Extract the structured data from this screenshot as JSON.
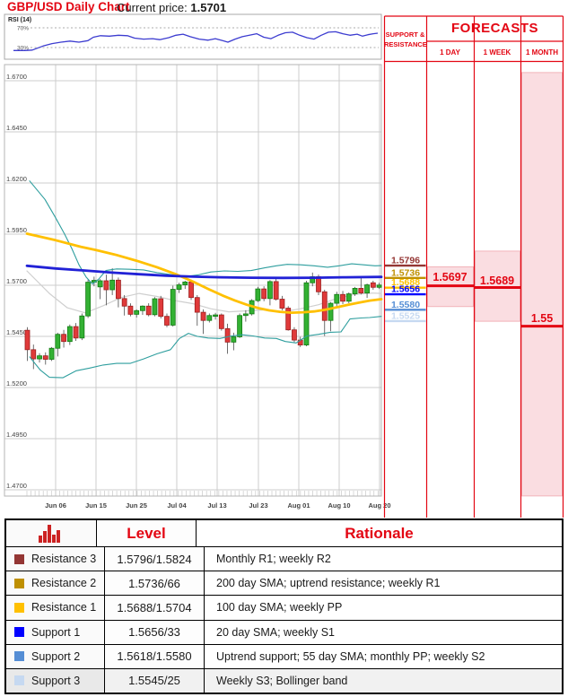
{
  "header": {
    "title": "GBP/USD Daily Chart",
    "price_label": "Current price:",
    "price_value": "1.5701"
  },
  "rsi": {
    "label": "RSI (14)",
    "upper_label": "70%",
    "lower_label": "30%",
    "points": [
      [
        15,
        24
      ],
      [
        28,
        24
      ],
      [
        36,
        25
      ],
      [
        48,
        33
      ],
      [
        58,
        38
      ],
      [
        68,
        41
      ],
      [
        78,
        43
      ],
      [
        88,
        41
      ],
      [
        98,
        44
      ],
      [
        104,
        51
      ],
      [
        112,
        54
      ],
      [
        122,
        53
      ],
      [
        132,
        55
      ],
      [
        142,
        54
      ],
      [
        150,
        49
      ],
      [
        160,
        47
      ],
      [
        170,
        48
      ],
      [
        178,
        46
      ],
      [
        188,
        50
      ],
      [
        196,
        55
      ],
      [
        204,
        57
      ],
      [
        212,
        52
      ],
      [
        222,
        47
      ],
      [
        232,
        45
      ],
      [
        240,
        48
      ],
      [
        248,
        44
      ],
      [
        254,
        41
      ],
      [
        262,
        47
      ],
      [
        270,
        52
      ],
      [
        278,
        55
      ],
      [
        286,
        58
      ],
      [
        294,
        51
      ],
      [
        302,
        48
      ],
      [
        310,
        55
      ],
      [
        318,
        60
      ],
      [
        326,
        61
      ],
      [
        334,
        55
      ],
      [
        342,
        50
      ],
      [
        350,
        47
      ],
      [
        358,
        55
      ],
      [
        366,
        61
      ],
      [
        374,
        62
      ],
      [
        382,
        58
      ],
      [
        390,
        55
      ],
      [
        398,
        57
      ],
      [
        404,
        53
      ],
      [
        410,
        56
      ],
      [
        416,
        58
      ],
      [
        421,
        59
      ]
    ]
  },
  "chart_data": {
    "type": "candlestick",
    "title": "GBP/USD Daily Chart",
    "y_ticks": [
      "1.6700",
      "1.6450",
      "1.6200",
      "1.5950",
      "1.5700",
      "1.5450",
      "1.5200",
      "1.4950",
      "1.4700"
    ],
    "x_ticks": [
      "Jun 06",
      "Jun 15",
      "Jun 25",
      "Jul 04",
      "Jul 13",
      "Jul 23",
      "Aug 01",
      "Aug 10",
      "Aug 20"
    ],
    "ylim": [
      1.4669,
      1.6779
    ],
    "grid": true,
    "candles": [
      [
        1.548,
        1.5495,
        1.533,
        1.5385
      ],
      [
        1.5385,
        1.541,
        1.529,
        1.534
      ],
      [
        1.534,
        1.5368,
        1.5322,
        1.5355
      ],
      [
        1.5355,
        1.5372,
        1.5312,
        1.5338
      ],
      [
        1.5338,
        1.5398,
        1.533,
        1.5392
      ],
      [
        1.5392,
        1.5468,
        1.5352,
        1.546
      ],
      [
        1.546,
        1.5482,
        1.5395,
        1.5425
      ],
      [
        1.5425,
        1.5508,
        1.5408,
        1.5498
      ],
      [
        1.5498,
        1.5515,
        1.5428,
        1.5442
      ],
      [
        1.5442,
        1.5562,
        1.5432,
        1.555
      ],
      [
        1.555,
        1.5728,
        1.554,
        1.5715
      ],
      [
        1.5715,
        1.5742,
        1.5695,
        1.5724
      ],
      [
        1.5692,
        1.573,
        1.5632,
        1.5722
      ],
      [
        1.5722,
        1.5752,
        1.5602,
        1.5678
      ],
      [
        1.5678,
        1.5783,
        1.5652,
        1.5725
      ],
      [
        1.5725,
        1.5738,
        1.5592,
        1.5635
      ],
      [
        1.5635,
        1.5652,
        1.5552,
        1.5598
      ],
      [
        1.5598,
        1.5612,
        1.5548,
        1.5558
      ],
      [
        1.5558,
        1.5582,
        1.5542,
        1.5576
      ],
      [
        1.5576,
        1.5602,
        1.5555,
        1.5598
      ],
      [
        1.5598,
        1.5612,
        1.5548,
        1.5556
      ],
      [
        1.5556,
        1.5642,
        1.5548,
        1.5634
      ],
      [
        1.5634,
        1.5648,
        1.5538,
        1.5548
      ],
      [
        1.5548,
        1.5562,
        1.5495,
        1.5505
      ],
      [
        1.5505,
        1.5698,
        1.5498,
        1.568
      ],
      [
        1.568,
        1.5712,
        1.5662,
        1.5702
      ],
      [
        1.5702,
        1.5722,
        1.5682,
        1.5716
      ],
      [
        1.5716,
        1.5728,
        1.5628,
        1.564
      ],
      [
        1.564,
        1.5652,
        1.5502,
        1.5568
      ],
      [
        1.5568,
        1.5582,
        1.5462,
        1.5528
      ],
      [
        1.5528,
        1.5562,
        1.5518,
        1.5552
      ],
      [
        1.5548,
        1.5565,
        1.5532,
        1.5555
      ],
      [
        1.5555,
        1.5562,
        1.5478,
        1.5488
      ],
      [
        1.5488,
        1.5512,
        1.5365,
        1.5422
      ],
      [
        1.5422,
        1.5468,
        1.5382,
        1.5448
      ],
      [
        1.5448,
        1.5562,
        1.5442,
        1.5552
      ],
      [
        1.5552,
        1.5578,
        1.5522,
        1.556
      ],
      [
        1.556,
        1.5632,
        1.5552,
        1.5625
      ],
      [
        1.5625,
        1.5692,
        1.5618,
        1.5682
      ],
      [
        1.5682,
        1.5695,
        1.5622,
        1.5635
      ],
      [
        1.5635,
        1.5725,
        1.5602,
        1.5718
      ],
      [
        1.5718,
        1.5732,
        1.5625,
        1.5632
      ],
      [
        1.5632,
        1.5648,
        1.5578,
        1.5588
      ],
      [
        1.5588,
        1.5598,
        1.5478,
        1.5482
      ],
      [
        1.5482,
        1.5495,
        1.5422,
        1.5432
      ],
      [
        1.5432,
        1.5448,
        1.5398,
        1.5408
      ],
      [
        1.5408,
        1.5722,
        1.5402,
        1.5712
      ],
      [
        1.5712,
        1.5762,
        1.5695,
        1.5742
      ],
      [
        1.5742,
        1.5752,
        1.5652,
        1.5668
      ],
      [
        1.5668,
        1.5678,
        1.5452,
        1.5528
      ],
      [
        1.5528,
        1.5618,
        1.5475,
        1.5612
      ],
      [
        1.5612,
        1.5668,
        1.5588,
        1.5655
      ],
      [
        1.5655,
        1.5672,
        1.5608,
        1.5622
      ],
      [
        1.5622,
        1.5665,
        1.5612,
        1.5658
      ],
      [
        1.5658,
        1.5692,
        1.5648,
        1.5685
      ],
      [
        1.5685,
        1.5742,
        1.5655,
        1.5662
      ],
      [
        1.5662,
        1.5708,
        1.5638,
        1.5702
      ],
      [
        1.5712,
        1.5722,
        1.5678,
        1.569
      ],
      [
        1.569,
        1.5712,
        1.5682,
        1.5701
      ]
    ],
    "overlays": [
      {
        "name": "sma-20-gray",
        "color": "#cfcfcf",
        "width": 1.2,
        "points": [
          [
            30,
            1.577
          ],
          [
            55,
            1.566
          ],
          [
            75,
            1.559
          ],
          [
            95,
            1.5565
          ],
          [
            115,
            1.56
          ],
          [
            135,
            1.564
          ],
          [
            155,
            1.566
          ],
          [
            175,
            1.5645
          ],
          [
            195,
            1.5625
          ],
          [
            215,
            1.561
          ],
          [
            235,
            1.5585
          ],
          [
            255,
            1.557
          ],
          [
            275,
            1.5575
          ],
          [
            295,
            1.558
          ],
          [
            315,
            1.557
          ],
          [
            335,
            1.5585
          ],
          [
            355,
            1.5605
          ],
          [
            375,
            1.5635
          ],
          [
            395,
            1.5655
          ],
          [
            415,
            1.5662
          ],
          [
            425,
            1.566
          ]
        ]
      },
      {
        "name": "bollinger-upper",
        "color": "#2e9e9e",
        "width": 1.1,
        "points": [
          [
            33,
            1.621
          ],
          [
            50,
            1.612
          ],
          [
            62,
            1.603
          ],
          [
            72,
            1.595
          ],
          [
            80,
            1.588
          ],
          [
            88,
            1.58
          ],
          [
            96,
            1.574
          ],
          [
            103,
            1.5706
          ],
          [
            110,
            1.573
          ],
          [
            118,
            1.5772
          ],
          [
            130,
            1.578
          ],
          [
            145,
            1.5778
          ],
          [
            160,
            1.5775
          ],
          [
            175,
            1.5762
          ],
          [
            190,
            1.5752
          ],
          [
            205,
            1.5742
          ],
          [
            220,
            1.575
          ],
          [
            235,
            1.5765
          ],
          [
            250,
            1.577
          ],
          [
            265,
            1.5768
          ],
          [
            280,
            1.5772
          ],
          [
            295,
            1.5785
          ],
          [
            308,
            1.5795
          ],
          [
            320,
            1.5802
          ],
          [
            335,
            1.58
          ],
          [
            350,
            1.5795
          ],
          [
            365,
            1.5788
          ],
          [
            378,
            1.5795
          ],
          [
            392,
            1.5805
          ],
          [
            405,
            1.58
          ],
          [
            418,
            1.5795
          ],
          [
            425,
            1.5796
          ]
        ]
      },
      {
        "name": "bollinger-lower",
        "color": "#2e9e9e",
        "width": 1.1,
        "points": [
          [
            33,
            1.535
          ],
          [
            45,
            1.5285
          ],
          [
            55,
            1.525
          ],
          [
            70,
            1.5248
          ],
          [
            85,
            1.5282
          ],
          [
            100,
            1.5295
          ],
          [
            115,
            1.531
          ],
          [
            130,
            1.5318
          ],
          [
            145,
            1.5318
          ],
          [
            160,
            1.534
          ],
          [
            175,
            1.5365
          ],
          [
            190,
            1.5385
          ],
          [
            200,
            1.544
          ],
          [
            210,
            1.5465
          ],
          [
            220,
            1.545
          ],
          [
            232,
            1.5442
          ],
          [
            245,
            1.544
          ],
          [
            258,
            1.5452
          ],
          [
            270,
            1.5458
          ],
          [
            282,
            1.5452
          ],
          [
            295,
            1.5442
          ],
          [
            308,
            1.544
          ],
          [
            318,
            1.5425
          ],
          [
            330,
            1.5418
          ],
          [
            342,
            1.5452
          ],
          [
            355,
            1.546
          ],
          [
            368,
            1.547
          ],
          [
            380,
            1.5472
          ],
          [
            390,
            1.5535
          ],
          [
            402,
            1.554
          ],
          [
            412,
            1.5542
          ],
          [
            425,
            1.5548
          ]
        ]
      },
      {
        "name": "sma-100-yellow",
        "color": "#ffc000",
        "width": 2.8,
        "points": [
          [
            30,
            1.5952
          ],
          [
            62,
            1.592
          ],
          [
            90,
            1.5888
          ],
          [
            107,
            1.5872
          ],
          [
            130,
            1.5848
          ],
          [
            152,
            1.582
          ],
          [
            175,
            1.5788
          ],
          [
            197,
            1.5752
          ],
          [
            215,
            1.5718
          ],
          [
            232,
            1.5682
          ],
          [
            248,
            1.565
          ],
          [
            262,
            1.5625
          ],
          [
            275,
            1.5605
          ],
          [
            288,
            1.5588
          ],
          [
            300,
            1.5577
          ],
          [
            312,
            1.557
          ],
          [
            325,
            1.5566
          ],
          [
            338,
            1.5568
          ],
          [
            350,
            1.5572
          ],
          [
            362,
            1.558
          ],
          [
            375,
            1.5592
          ],
          [
            388,
            1.5605
          ],
          [
            400,
            1.5615
          ],
          [
            412,
            1.5625
          ],
          [
            425,
            1.5632
          ]
        ]
      },
      {
        "name": "sma-200-blue",
        "color": "#2121d6",
        "width": 2.8,
        "points": [
          [
            30,
            1.5795
          ],
          [
            62,
            1.5782
          ],
          [
            95,
            1.5772
          ],
          [
            125,
            1.5762
          ],
          [
            155,
            1.5754
          ],
          [
            185,
            1.5747
          ],
          [
            215,
            1.5742
          ],
          [
            245,
            1.5739
          ],
          [
            280,
            1.5737
          ],
          [
            315,
            1.5736
          ],
          [
            350,
            1.5737
          ],
          [
            385,
            1.5739
          ],
          [
            425,
            1.5741
          ]
        ]
      }
    ],
    "sr_levels": [
      {
        "label": "1.5796",
        "price": 1.5796,
        "color": "#943634"
      },
      {
        "label": "1.5736",
        "price": 1.5736,
        "color": "#bf9000"
      },
      {
        "label": "1.5688",
        "price": 1.5688,
        "color": "#ffc000"
      },
      {
        "label": "1.5656",
        "price": 1.5656,
        "color": "#0000ff"
      },
      {
        "label": "1.5580",
        "price": 1.558,
        "color": "#558ed5"
      },
      {
        "label": "1.5525",
        "price": 1.5525,
        "color": "#c6d9f1"
      }
    ]
  },
  "forecasts": {
    "sr_header_line1": "SUPPORT &",
    "sr_header_line2": "RESISTANCE",
    "title": "FORECASTS",
    "columns": [
      {
        "label": "1 DAY",
        "value": "1.5697",
        "price": 1.5697,
        "range_high": 1.579,
        "range_low": 1.5596
      },
      {
        "label": "1 WEEK",
        "value": "1.5689",
        "price": 1.5689,
        "range_high": 1.5867,
        "range_low": 1.5524
      },
      {
        "label": "1 MONTH",
        "value": "1.55",
        "price": 1.55,
        "range_high": 1.674,
        "range_low": 1.467
      }
    ]
  },
  "table": {
    "level_header": "Level",
    "rationale_header": "Rationale",
    "rows": [
      {
        "name": "Resistance 3",
        "color": "#943634",
        "level": "1.5796/1.5824",
        "rationale": "Monthly R1; weekly R2"
      },
      {
        "name": "Resistance 2",
        "color": "#bf9000",
        "level": "1.5736/66",
        "rationale": "200 day SMA; uptrend resistance; weekly R1"
      },
      {
        "name": "Resistance 1",
        "color": "#ffc000",
        "level": "1.5688/1.5704",
        "rationale": "100 day SMA; weekly PP"
      },
      {
        "name": "Support 1",
        "color": "#0000ff",
        "level": "1.5656/33",
        "rationale": "20 day SMA; weekly S1"
      },
      {
        "name": "Support 2",
        "color": "#558ed5",
        "level": "1.5618/1.5580",
        "rationale": "Uptrend support; 55 day SMA; monthly PP; weekly S2"
      },
      {
        "name": "Support 3",
        "color": "#c6d9f1",
        "level": "1.5545/25",
        "rationale": "Weekly S3; Bollinger band"
      }
    ]
  },
  "colors": {
    "accent_red": "#e30613",
    "pink_fill": "#fadde1",
    "pink_border": "#f2b3ba",
    "candle_up": "#33b133",
    "candle_up_border": "#127a12",
    "candle_down": "#e03a3a",
    "candle_down_border": "#9c1f1f",
    "rsi_line": "#3c3cd0",
    "grid": "#cccccc"
  }
}
